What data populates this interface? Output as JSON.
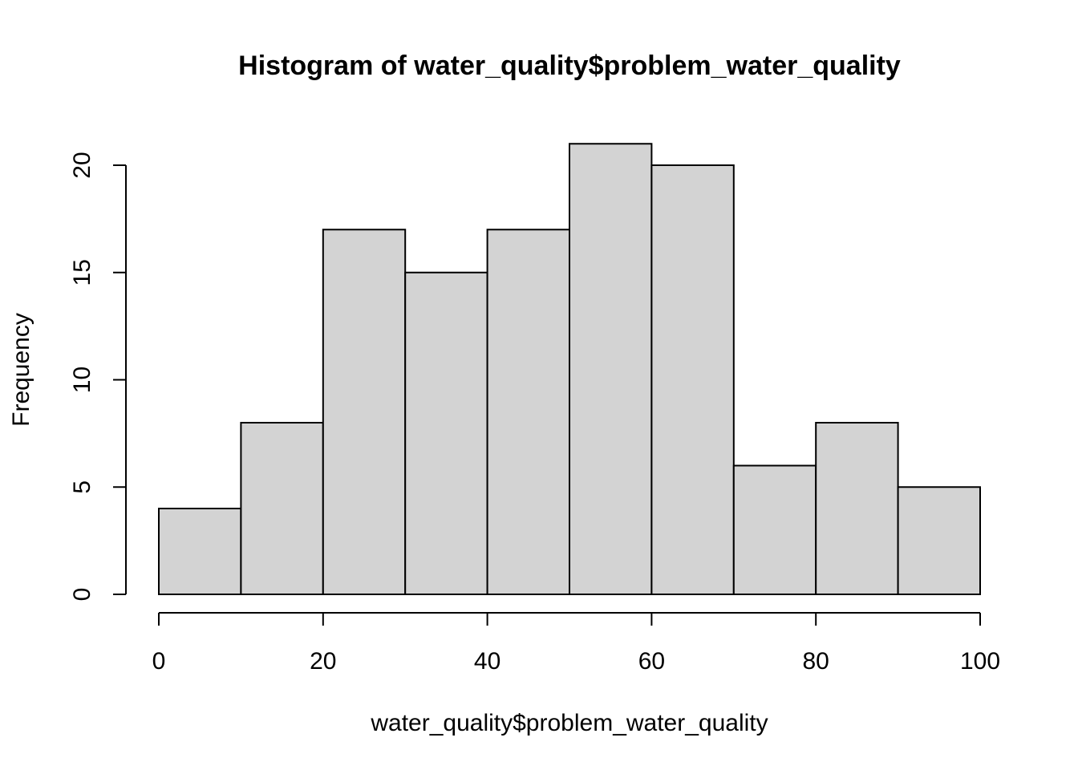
{
  "chart_data": {
    "type": "bar",
    "title": "Histogram of water_quality$problem_water_quality",
    "xlabel": "water_quality$problem_water_quality",
    "ylabel": "Frequency",
    "bins": [
      {
        "start": 0,
        "end": 10,
        "count": 4
      },
      {
        "start": 10,
        "end": 20,
        "count": 8
      },
      {
        "start": 20,
        "end": 30,
        "count": 17
      },
      {
        "start": 30,
        "end": 40,
        "count": 15
      },
      {
        "start": 40,
        "end": 50,
        "count": 17
      },
      {
        "start": 50,
        "end": 60,
        "count": 21
      },
      {
        "start": 60,
        "end": 70,
        "count": 20
      },
      {
        "start": 70,
        "end": 80,
        "count": 6
      },
      {
        "start": 80,
        "end": 90,
        "count": 8
      },
      {
        "start": 90,
        "end": 100,
        "count": 5
      }
    ],
    "xlim": [
      0,
      100
    ],
    "ylim": [
      0,
      21
    ],
    "x_ticks": [
      "0",
      "20",
      "40",
      "60",
      "80",
      "100"
    ],
    "y_ticks": [
      "0",
      "5",
      "10",
      "15",
      "20"
    ],
    "grid": false,
    "bar_color": "#d3d3d3",
    "border_color": "#000000"
  }
}
